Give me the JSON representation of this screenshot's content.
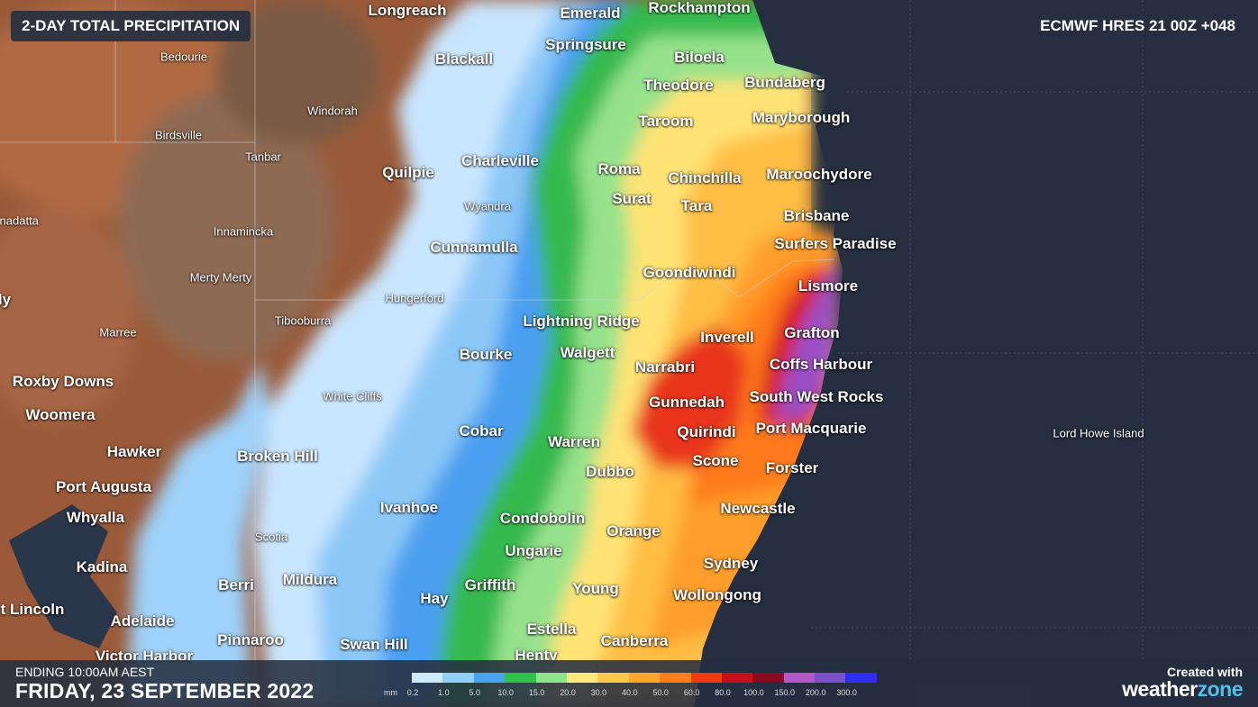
{
  "header": {
    "title": "2-DAY TOTAL PRECIPITATION",
    "model": "ECMWF HRES 21 00Z +048"
  },
  "footer": {
    "ending_label": "ENDING 10:00AM AEST",
    "date": "FRIDAY, 23 SEPTEMBER 2022",
    "created_with": "Created with",
    "brand_weather": "weather",
    "brand_zone": "zone"
  },
  "legend": {
    "unit": "mm",
    "ticks": [
      "0.2",
      "1.0",
      "5.0",
      "10.0",
      "15.0",
      "20.0",
      "30.0",
      "40.0",
      "50.0",
      "60.0",
      "80.0",
      "100.0",
      "150.0",
      "200.0",
      "300.0"
    ],
    "colors": [
      "#cfeaff",
      "#90d0fb",
      "#4aa3f2",
      "#2fc24a",
      "#8fe58a",
      "#ffe97a",
      "#ffc84a",
      "#ffa62b",
      "#ff7d1a",
      "#f03a12",
      "#c4101a",
      "#8a0a22",
      "#b458c7",
      "#7a4fc8",
      "#2f2ef0"
    ]
  },
  "map": {
    "ocean_color": "#262f40",
    "places": [
      {
        "id": "longreach",
        "name": "Longreach",
        "size": "big"
      },
      {
        "id": "emerald",
        "name": "Emerald",
        "size": "big"
      },
      {
        "id": "rockhampton",
        "name": "Rockhampton",
        "size": "big"
      },
      {
        "id": "bedourie",
        "name": "Bedourie",
        "size": "small"
      },
      {
        "id": "springsure",
        "name": "Springsure",
        "size": "big"
      },
      {
        "id": "blackall",
        "name": "Blackall",
        "size": "big"
      },
      {
        "id": "biloela",
        "name": "Biloela",
        "size": "big"
      },
      {
        "id": "bundaberg",
        "name": "Bundaberg",
        "size": "big"
      },
      {
        "id": "theodore",
        "name": "Theodore",
        "size": "big"
      },
      {
        "id": "windorah",
        "name": "Windorah",
        "size": "small"
      },
      {
        "id": "taroom",
        "name": "Taroom",
        "size": "big"
      },
      {
        "id": "maryborough",
        "name": "Maryborough",
        "size": "big"
      },
      {
        "id": "birdsville",
        "name": "Birdsville",
        "size": "small"
      },
      {
        "id": "tanbar",
        "name": "Tanbar",
        "size": "small"
      },
      {
        "id": "charleville",
        "name": "Charleville",
        "size": "big"
      },
      {
        "id": "quilpie",
        "name": "Quilpie",
        "size": "big"
      },
      {
        "id": "roma",
        "name": "Roma",
        "size": "big"
      },
      {
        "id": "chinchilla",
        "name": "Chinchilla",
        "size": "big"
      },
      {
        "id": "maroochydore",
        "name": "Maroochydore",
        "size": "big"
      },
      {
        "id": "surat",
        "name": "Surat",
        "size": "big"
      },
      {
        "id": "wyandra",
        "name": "Wyandra",
        "size": "small"
      },
      {
        "id": "tara",
        "name": "Tara",
        "size": "big"
      },
      {
        "id": "brisbane",
        "name": "Brisbane",
        "size": "big"
      },
      {
        "id": "odnadatta",
        "name": "odnadatta",
        "size": "small"
      },
      {
        "id": "innamincka",
        "name": "Innamincka",
        "size": "small"
      },
      {
        "id": "surfers",
        "name": "Surfers Paradise",
        "size": "big"
      },
      {
        "id": "cunnamulla",
        "name": "Cunnamulla",
        "size": "big"
      },
      {
        "id": "goondiwindi",
        "name": "Goondiwindi",
        "size": "big"
      },
      {
        "id": "mertymerty",
        "name": "Merty Merty",
        "size": "small"
      },
      {
        "id": "lismore",
        "name": "Lismore",
        "size": "big"
      },
      {
        "id": "hungerford",
        "name": "Hungerford",
        "size": "small"
      },
      {
        "id": "ly",
        "name": "ly",
        "size": "big"
      },
      {
        "id": "tibooburra",
        "name": "Tibooburra",
        "size": "small"
      },
      {
        "id": "lightningridge",
        "name": "Lightning Ridge",
        "size": "big"
      },
      {
        "id": "marree",
        "name": "Marree",
        "size": "small"
      },
      {
        "id": "grafton",
        "name": "Grafton",
        "size": "big"
      },
      {
        "id": "inverell",
        "name": "Inverell",
        "size": "big"
      },
      {
        "id": "walgett",
        "name": "Walgett",
        "size": "big"
      },
      {
        "id": "bourke",
        "name": "Bourke",
        "size": "big"
      },
      {
        "id": "narrabri",
        "name": "Narrabri",
        "size": "big"
      },
      {
        "id": "coffsharbour",
        "name": "Coffs Harbour",
        "size": "big"
      },
      {
        "id": "roxbydowns",
        "name": "Roxby Downs",
        "size": "big"
      },
      {
        "id": "whitecliffs",
        "name": "White Cliffs",
        "size": "small"
      },
      {
        "id": "southwestrocks",
        "name": "South West Rocks",
        "size": "big"
      },
      {
        "id": "gunnedah",
        "name": "Gunnedah",
        "size": "big"
      },
      {
        "id": "woomera",
        "name": "Woomera",
        "size": "big"
      },
      {
        "id": "portmacquarie",
        "name": "Port Macquarie",
        "size": "big"
      },
      {
        "id": "cobar",
        "name": "Cobar",
        "size": "big"
      },
      {
        "id": "quirindi",
        "name": "Quirindi",
        "size": "big"
      },
      {
        "id": "lordhowe",
        "name": "Lord Howe Island",
        "size": "small"
      },
      {
        "id": "warren",
        "name": "Warren",
        "size": "big"
      },
      {
        "id": "hawker",
        "name": "Hawker",
        "size": "big"
      },
      {
        "id": "brokenhill",
        "name": "Broken Hill",
        "size": "big"
      },
      {
        "id": "scone",
        "name": "Scone",
        "size": "big"
      },
      {
        "id": "forster",
        "name": "Forster",
        "size": "big"
      },
      {
        "id": "dubbo",
        "name": "Dubbo",
        "size": "big"
      },
      {
        "id": "portaugusta",
        "name": "Port Augusta",
        "size": "big"
      },
      {
        "id": "ivanhoe",
        "name": "Ivanhoe",
        "size": "big"
      },
      {
        "id": "newcastle",
        "name": "Newcastle",
        "size": "big"
      },
      {
        "id": "whyalla",
        "name": "Whyalla",
        "size": "big"
      },
      {
        "id": "condobolin",
        "name": "Condobolin",
        "size": "big"
      },
      {
        "id": "orange",
        "name": "Orange",
        "size": "big"
      },
      {
        "id": "scotia",
        "name": "Scotia",
        "size": "small"
      },
      {
        "id": "ungarie",
        "name": "Ungarie",
        "size": "big"
      },
      {
        "id": "sydney",
        "name": "Sydney",
        "size": "big"
      },
      {
        "id": "kadina",
        "name": "Kadina",
        "size": "big"
      },
      {
        "id": "mildura",
        "name": "Mildura",
        "size": "big"
      },
      {
        "id": "berri",
        "name": "Berri",
        "size": "big"
      },
      {
        "id": "griffith",
        "name": "Griffith",
        "size": "big"
      },
      {
        "id": "young",
        "name": "Young",
        "size": "big"
      },
      {
        "id": "wollongong",
        "name": "Wollongong",
        "size": "big"
      },
      {
        "id": "hay",
        "name": "Hay",
        "size": "big"
      },
      {
        "id": "portlincoln",
        "name": "t Lincoln",
        "size": "big"
      },
      {
        "id": "adelaide",
        "name": "Adelaide",
        "size": "big"
      },
      {
        "id": "estella",
        "name": "Estella",
        "size": "big"
      },
      {
        "id": "pinnaroo",
        "name": "Pinnaroo",
        "size": "big"
      },
      {
        "id": "canberra",
        "name": "Canberra",
        "size": "big"
      },
      {
        "id": "swanhill",
        "name": "Swan Hill",
        "size": "big"
      },
      {
        "id": "victorharbor",
        "name": "Victor Harbor",
        "size": "big"
      },
      {
        "id": "henty",
        "name": "Henty",
        "size": "big"
      }
    ]
  }
}
